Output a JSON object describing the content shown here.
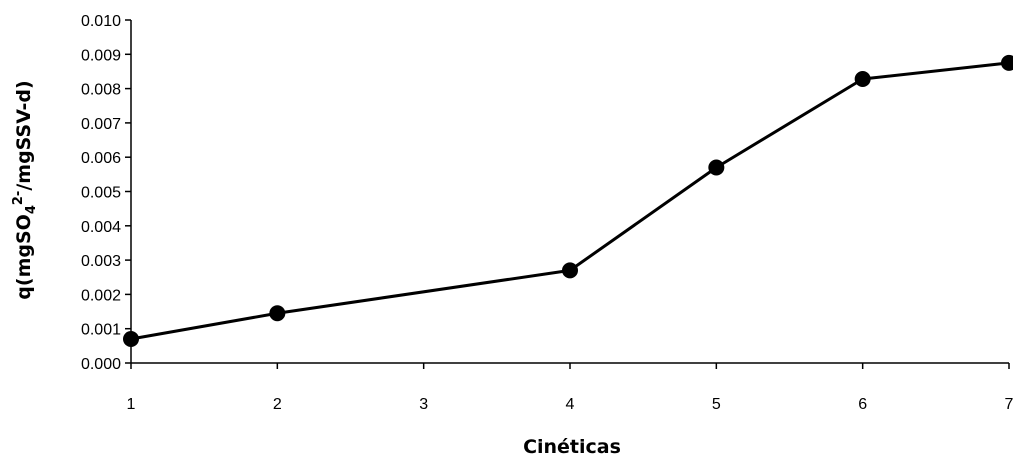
{
  "chart_data": {
    "type": "line",
    "title": "",
    "xlabel": "Cinéticas",
    "ylabel": {
      "prefix": "q(mgSO",
      "sub": "4",
      "sup": "2-",
      "suffix": "/mgSSV-d)"
    },
    "x_ticks": [
      1,
      2,
      3,
      4,
      5,
      6,
      7
    ],
    "x_tick_labels": [
      "1",
      "2",
      "3",
      "4",
      "5",
      "6",
      "7"
    ],
    "y_ticks": [
      0.0,
      0.001,
      0.002,
      0.003,
      0.004,
      0.005,
      0.006,
      0.007,
      0.008,
      0.009,
      0.01
    ],
    "y_tick_labels": [
      "0.000",
      "0.001",
      "0.002",
      "0.003",
      "0.004",
      "0.005",
      "0.006",
      "0.007",
      "0.008",
      "0.009",
      "0.010"
    ],
    "xlim": [
      1,
      7
    ],
    "ylim": [
      0,
      0.01
    ],
    "grid": false,
    "legend": "none",
    "series": [
      {
        "x": [
          1,
          2,
          4,
          5,
          6,
          7
        ],
        "y": [
          0.0007,
          0.00145,
          0.0027,
          0.0057,
          0.00828,
          0.00875
        ]
      }
    ],
    "line_color": "#000000",
    "marker": "circle"
  }
}
